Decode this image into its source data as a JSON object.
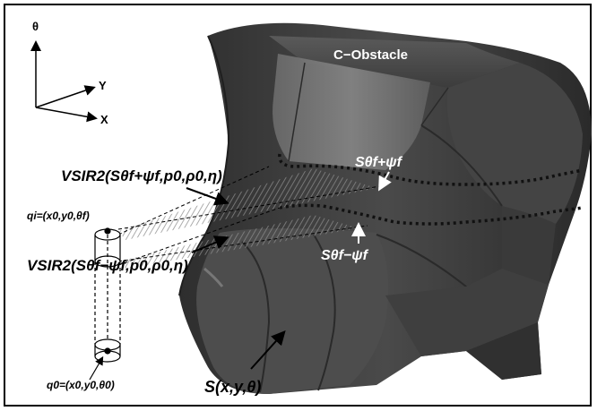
{
  "axes": {
    "theta": "θ",
    "y": "Y",
    "x": "X"
  },
  "obstacle_title": "C−Obstacle",
  "labels": {
    "vs_upper": "VSIR2(Sθf+ψf,p0,ρ0,η)",
    "vs_lower": "VSIR2(Sθf−ψf,p0,ρ0,η)",
    "qi": "qi=(x0,y0,θf)",
    "q0": "q0=(x0,y0,θ0)",
    "s_upper": "Sθf+ψf",
    "s_lower": "Sθf−ψf",
    "s_surface": "S(x,y,θ)"
  },
  "colors": {
    "obstacle_dark": "#3a3a3a",
    "obstacle_mid": "#555555",
    "obstacle_light": "#7a7a7a",
    "hatch": "#9a9a9a"
  }
}
